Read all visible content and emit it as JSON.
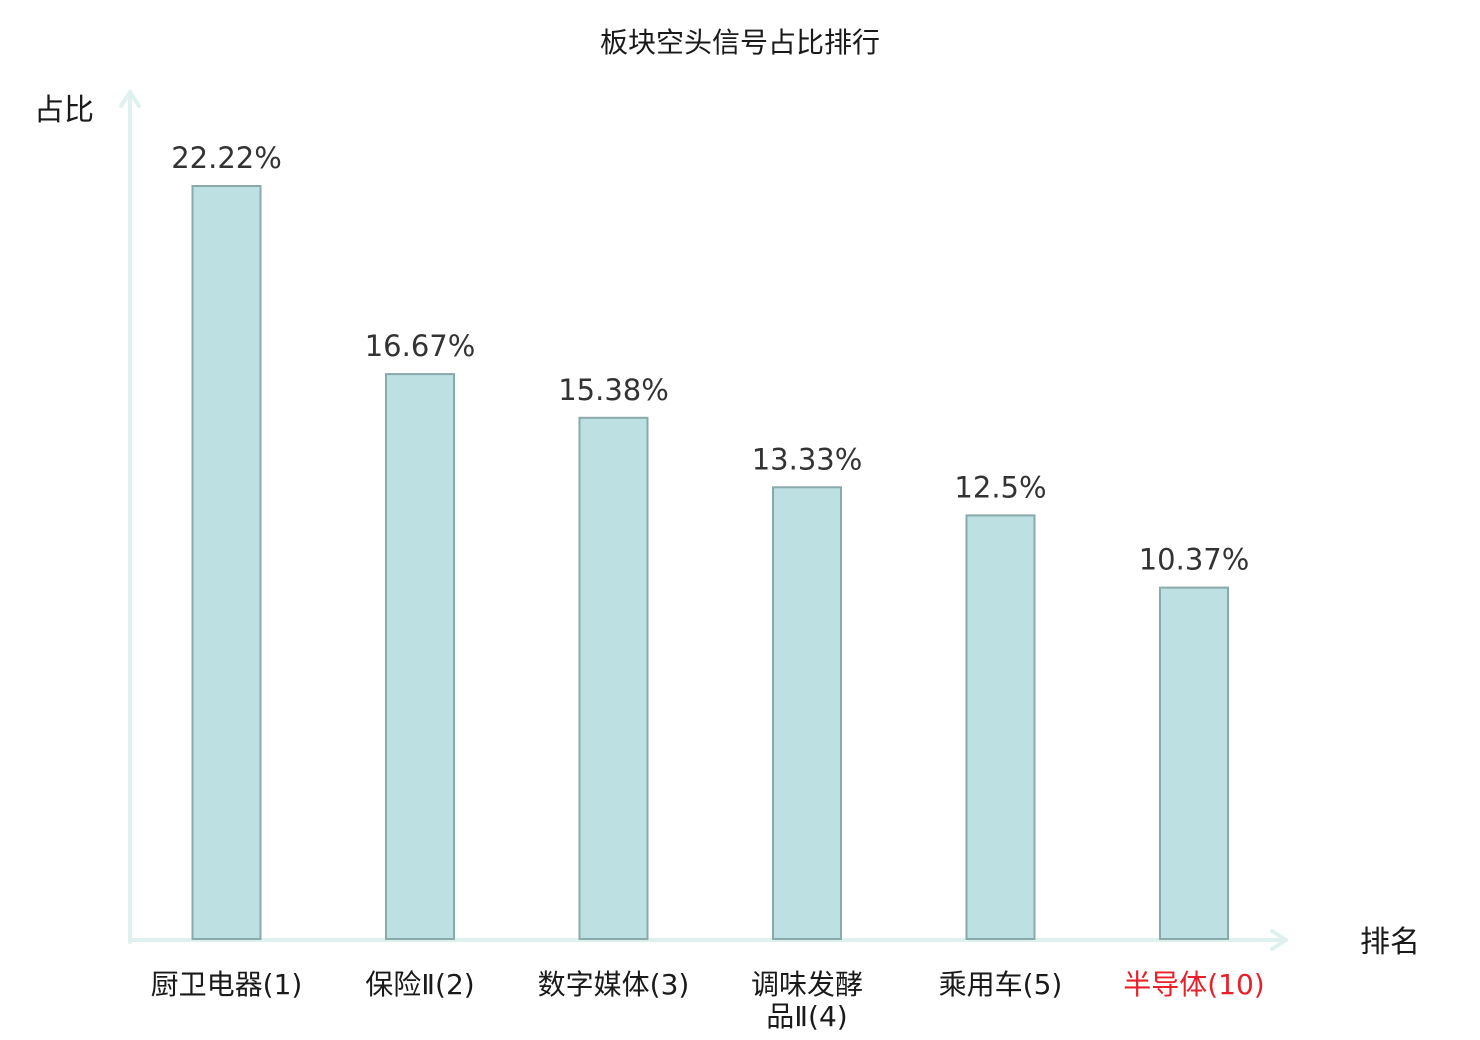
{
  "chart_data": {
    "type": "bar",
    "title": "板块空头信号占比排行",
    "ylabel": "占比",
    "xlabel": "排名",
    "categories": [
      [
        "厨卫电器(1)"
      ],
      [
        "保险Ⅱ(2)"
      ],
      [
        "数字媒体(3)"
      ],
      [
        "调味发酵",
        "品Ⅱ(4)"
      ],
      [
        "乘用车(5)"
      ],
      [
        "半导体(10)"
      ]
    ],
    "values": [
      22.22,
      16.67,
      15.38,
      13.33,
      12.5,
      10.37
    ],
    "value_labels": [
      "22.22%",
      "16.67%",
      "15.38%",
      "13.33%",
      "12.5%",
      "10.37%"
    ],
    "highlight_index": 5,
    "ylim": [
      0,
      22.22
    ],
    "grid": false,
    "colors": {
      "bar_fill": "#bde0e3",
      "bar_stroke": "#8aa9ab",
      "axis": "#dff1ee",
      "highlight_label": "#e8202a"
    }
  }
}
